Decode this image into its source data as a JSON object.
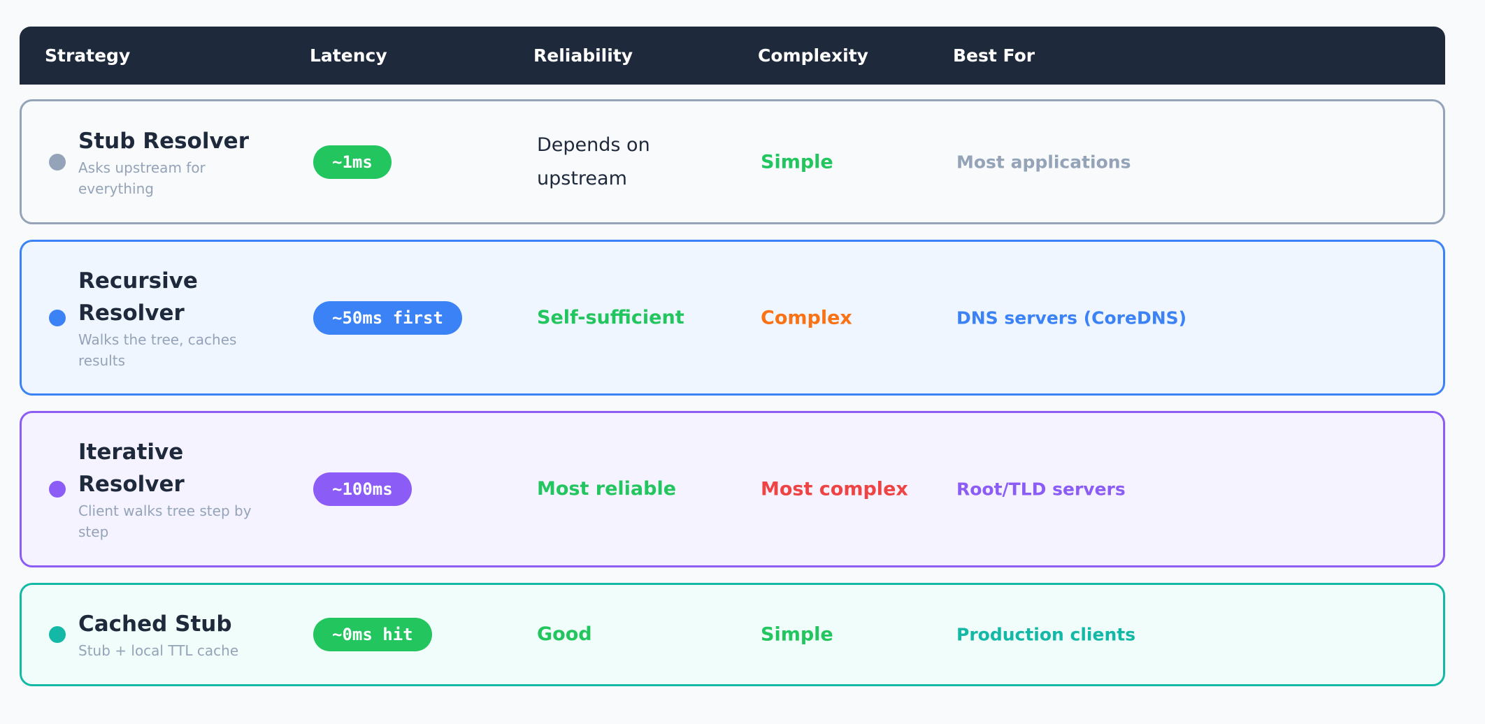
{
  "table": {
    "headers": [
      "Strategy",
      "Latency",
      "Reliability",
      "Complexity",
      "Best For"
    ],
    "rows": [
      {
        "name": "Stub Resolver",
        "description": "Asks upstream for everything",
        "latency": "~1ms",
        "reliability": "Depends on upstream",
        "complexity": "Simple",
        "best_for": "Most applications"
      },
      {
        "name": "Recursive Resolver",
        "description": "Walks the tree, caches results",
        "latency": "~50ms first",
        "reliability": "Self-sufficient",
        "complexity": "Complex",
        "best_for": "DNS servers (CoreDNS)"
      },
      {
        "name": "Iterative Resolver",
        "description": "Client walks tree step by step",
        "latency": "~100ms",
        "reliability": "Most reliable",
        "complexity": "Most complex",
        "best_for": "Root/TLD servers"
      },
      {
        "name": "Cached Stub",
        "description": "Stub + local TTL cache",
        "latency": "~0ms hit",
        "reliability": "Good",
        "complexity": "Simple",
        "best_for": "Production clients"
      }
    ]
  }
}
